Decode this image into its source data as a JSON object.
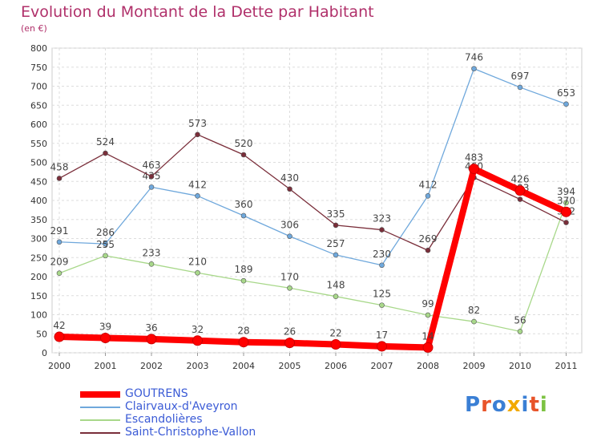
{
  "chart_data": {
    "type": "line",
    "title": "Evolution du Montant de la Dette par Habitant",
    "subtitle": "(en €)",
    "x": [
      "2000",
      "2001",
      "2002",
      "2003",
      "2004",
      "2005",
      "2006",
      "2007",
      "2008",
      "2009",
      "2010",
      "2011"
    ],
    "ylim": [
      0,
      800
    ],
    "yticks": [
      0,
      50,
      100,
      150,
      200,
      250,
      300,
      350,
      400,
      450,
      500,
      550,
      600,
      650,
      700,
      750,
      800
    ],
    "grid": true,
    "legend_position": "bottom-left",
    "series": [
      {
        "name": "GOUTRENS",
        "color": "#ff0000",
        "width": 8,
        "values": [
          42,
          39,
          36,
          32,
          28,
          26,
          22,
          17,
          14,
          483,
          426,
          370
        ]
      },
      {
        "name": "Clairvaux-d'Aveyron",
        "color": "#6fa8dc",
        "width": 1.3,
        "values": [
          291,
          286,
          435,
          412,
          360,
          306,
          257,
          230,
          412,
          746,
          697,
          653
        ]
      },
      {
        "name": "Escandolières",
        "color": "#a8d88a",
        "width": 1.3,
        "values": [
          209,
          255,
          233,
          210,
          189,
          170,
          148,
          125,
          99,
          82,
          56,
          394
        ]
      },
      {
        "name": "Saint-Christophe-Vallon",
        "color": "#7a2e3a",
        "width": 1.3,
        "values": [
          458,
          524,
          463,
          573,
          520,
          430,
          335,
          323,
          269,
          460,
          403,
          342
        ]
      }
    ]
  },
  "logo": {
    "text": "Proxiti",
    "colors": [
      "#3a7fd5",
      "#e8542a",
      "#3a7fd5",
      "#f2a900",
      "#3a7fd5",
      "#e8542a",
      "#7cc242"
    ]
  }
}
